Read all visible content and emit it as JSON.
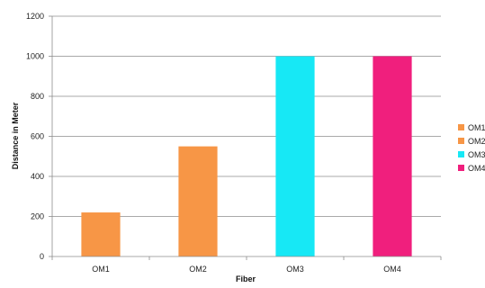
{
  "chart_data": {
    "type": "bar",
    "title": "",
    "xlabel": "Fiber",
    "ylabel": "Distance in Meter",
    "categories": [
      "OM1",
      "OM2",
      "OM3",
      "OM4"
    ],
    "values": [
      220,
      550,
      1000,
      1000
    ],
    "colors": [
      "#f79646",
      "#f79646",
      "#17e8f5",
      "#f01f7d"
    ],
    "ylim": [
      0,
      1200
    ],
    "yticks": [
      0,
      200,
      400,
      600,
      800,
      1000,
      1200
    ],
    "grid": true,
    "legend": {
      "position": "right",
      "entries": [
        {
          "label": "OM1",
          "color": "#f79646"
        },
        {
          "label": "OM2",
          "color": "#f79646"
        },
        {
          "label": "OM3",
          "color": "#17e8f5"
        },
        {
          "label": "OM4",
          "color": "#f01f7d"
        }
      ]
    }
  }
}
